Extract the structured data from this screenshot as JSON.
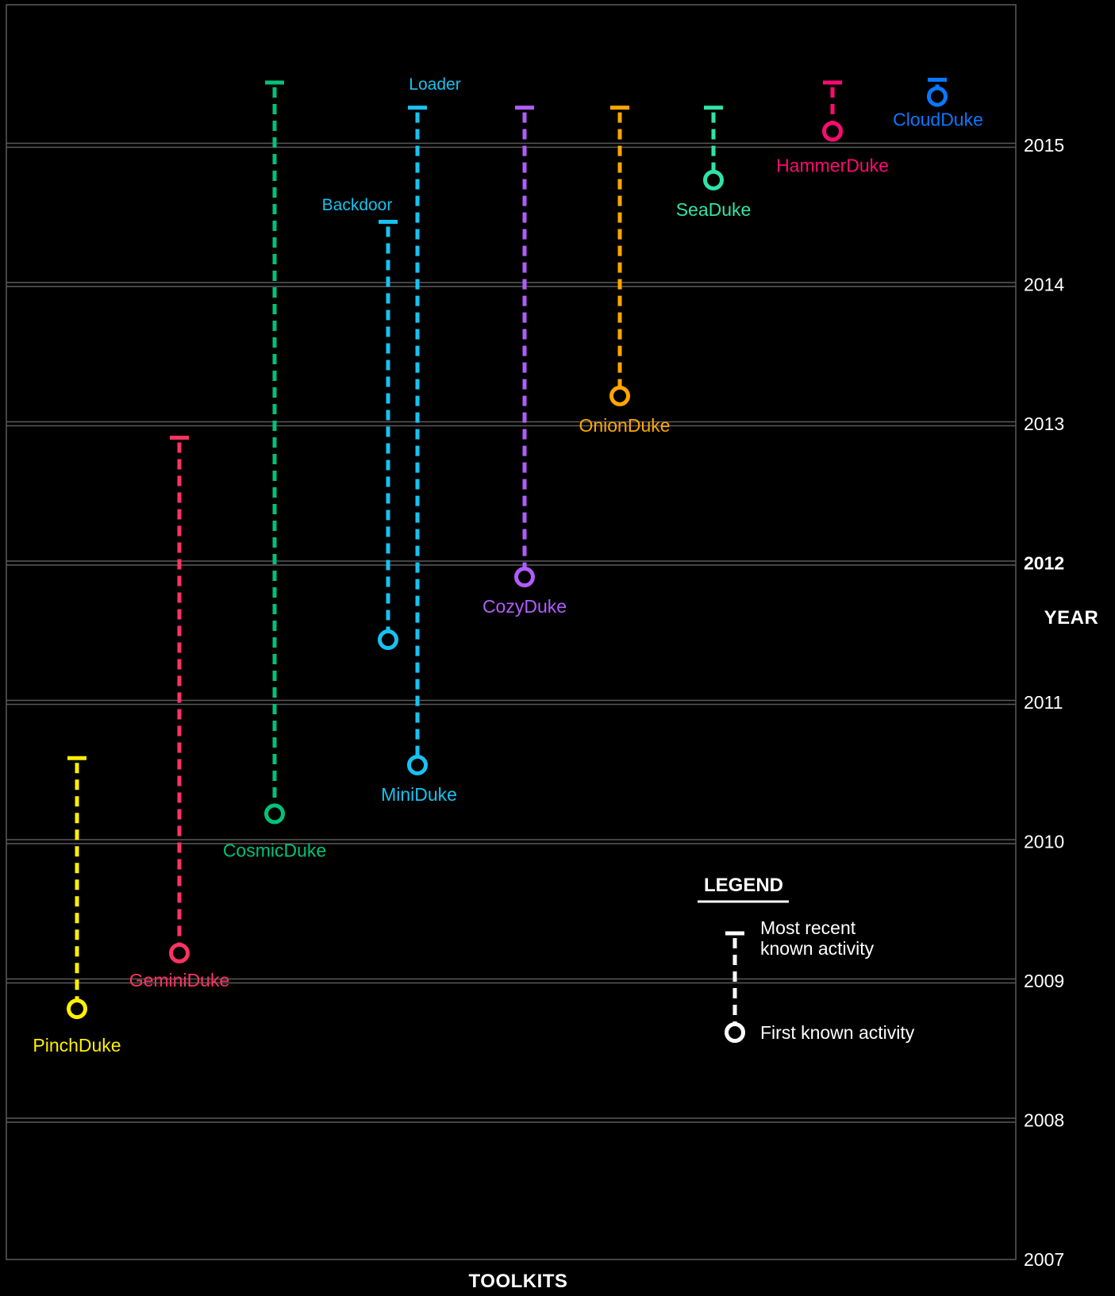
{
  "chart_data": {
    "type": "timeline",
    "ylabel": "YEAR",
    "xlabel": "TOOLKITS",
    "ylim": [
      2007,
      2016
    ],
    "year_ticks": [
      2007,
      2008,
      2009,
      2010,
      2011,
      2012,
      2013,
      2014,
      2015
    ],
    "highlighted_year": 2012,
    "series": [
      {
        "name": "PinchDuke",
        "first": 2008.8,
        "last": 2010.6,
        "color": "#ffef00"
      },
      {
        "name": "GeminiDuke",
        "first": 2009.2,
        "last": 2012.9,
        "color": "#ff3362"
      },
      {
        "name": "CosmicDuke",
        "first": 2010.2,
        "last": 2015.45,
        "color": "#00c27a"
      },
      {
        "name": "MiniDuke",
        "sublabel": "Backdoor",
        "first": 2011.45,
        "last": 2014.45,
        "color": "#18c2f0",
        "part": "backdoor"
      },
      {
        "name": "MiniDuke",
        "sublabel": "Loader",
        "first": 2010.55,
        "last": 2015.27,
        "color": "#18c2f0",
        "part": "loader"
      },
      {
        "name": "CozyDuke",
        "first": 2011.9,
        "last": 2015.27,
        "color": "#b25cff"
      },
      {
        "name": "OnionDuke",
        "first": 2013.2,
        "last": 2015.27,
        "color": "#ffa600"
      },
      {
        "name": "SeaDuke",
        "first": 2014.75,
        "last": 2015.27,
        "color": "#2fe3a8"
      },
      {
        "name": "HammerDuke",
        "first": 2015.1,
        "last": 2015.45,
        "color": "#ff0a72"
      },
      {
        "name": "CloudDuke",
        "first": 2015.35,
        "last": 2015.47,
        "color": "#0a78ff"
      }
    ]
  },
  "legend": {
    "title": "LEGEND",
    "most_recent": [
      "Most recent",
      "known activity"
    ],
    "first": "First known activity",
    "color": "#ffffff"
  }
}
